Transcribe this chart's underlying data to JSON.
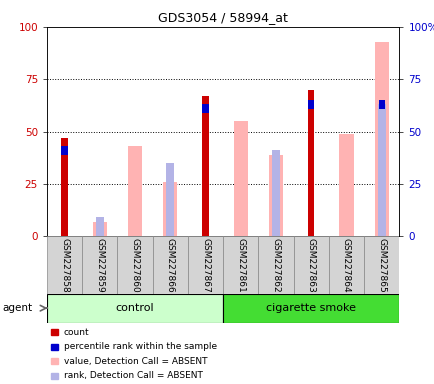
{
  "title": "GDS3054 / 58994_at",
  "samples": [
    "GSM227858",
    "GSM227859",
    "GSM227860",
    "GSM227866",
    "GSM227867",
    "GSM227861",
    "GSM227862",
    "GSM227863",
    "GSM227864",
    "GSM227865"
  ],
  "count": [
    47,
    0,
    0,
    0,
    67,
    0,
    0,
    70,
    0,
    0
  ],
  "percentile_rank": [
    41,
    0,
    0,
    0,
    61,
    0,
    0,
    63,
    0,
    63
  ],
  "value_absent": [
    0,
    7,
    43,
    26,
    0,
    55,
    39,
    0,
    49,
    93
  ],
  "rank_absent": [
    0,
    9,
    0,
    35,
    0,
    0,
    41,
    0,
    0,
    63
  ],
  "count_color": "#cc0000",
  "percentile_color": "#0000cc",
  "value_absent_color": "#ffb3b3",
  "rank_absent_color": "#b3b3e6",
  "ylim": [
    0,
    100
  ],
  "yticks": [
    0,
    25,
    50,
    75,
    100
  ],
  "control_color": "#ccffcc",
  "smoke_color": "#44dd33",
  "agent_label": "agent",
  "control_label": "control",
  "smoke_label": "cigarette smoke",
  "legend_items": [
    "count",
    "percentile rank within the sample",
    "value, Detection Call = ABSENT",
    "rank, Detection Call = ABSENT"
  ],
  "legend_colors": [
    "#cc0000",
    "#0000cc",
    "#ffb3b3",
    "#b3b3e6"
  ],
  "n_control": 5,
  "n_smoke": 5
}
